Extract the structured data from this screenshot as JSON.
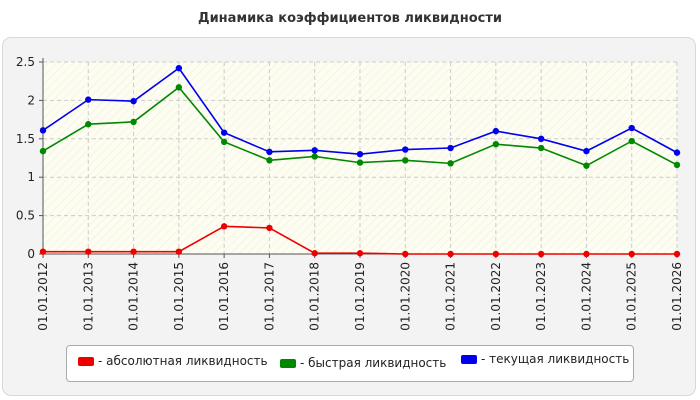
{
  "chart_data": {
    "type": "line",
    "title": "Динамика коэффициентов ликвидности",
    "categories": [
      "01.01.2012",
      "01.01.2013",
      "01.01.2014",
      "01.01.2015",
      "01.01.2016",
      "01.01.2017",
      "01.01.2018",
      "01.01.2019",
      "01.01.2020",
      "01.01.2021",
      "01.01.2022",
      "01.01.2023",
      "01.01.2024",
      "01.01.2025",
      "01.01.2026"
    ],
    "ylim": [
      0,
      2.5
    ],
    "yticks": [
      "0",
      "0.5",
      "1",
      "1.5",
      "2",
      "2.5"
    ],
    "grid": true,
    "legend_position": "bottom",
    "series": [
      {
        "name": "- абсолютная ликвидность",
        "color": "#ee0000",
        "values": [
          0.03,
          0.03,
          0.03,
          0.03,
          0.36,
          0.34,
          0.01,
          0.01,
          0.0,
          0.0,
          0.0,
          0.0,
          0.0,
          0.0,
          0.0
        ]
      },
      {
        "name": "- быстрая ликвидность",
        "color": "#008800",
        "values": [
          1.34,
          1.69,
          1.72,
          2.17,
          1.46,
          1.22,
          1.27,
          1.19,
          1.22,
          1.18,
          1.43,
          1.38,
          1.15,
          1.47,
          1.16
        ]
      },
      {
        "name": "- текущая ликвидность",
        "color": "#0000ee",
        "values": [
          1.61,
          2.01,
          1.99,
          2.42,
          1.58,
          1.33,
          1.35,
          1.3,
          1.36,
          1.38,
          1.6,
          1.5,
          1.34,
          1.64,
          1.32
        ]
      }
    ]
  }
}
